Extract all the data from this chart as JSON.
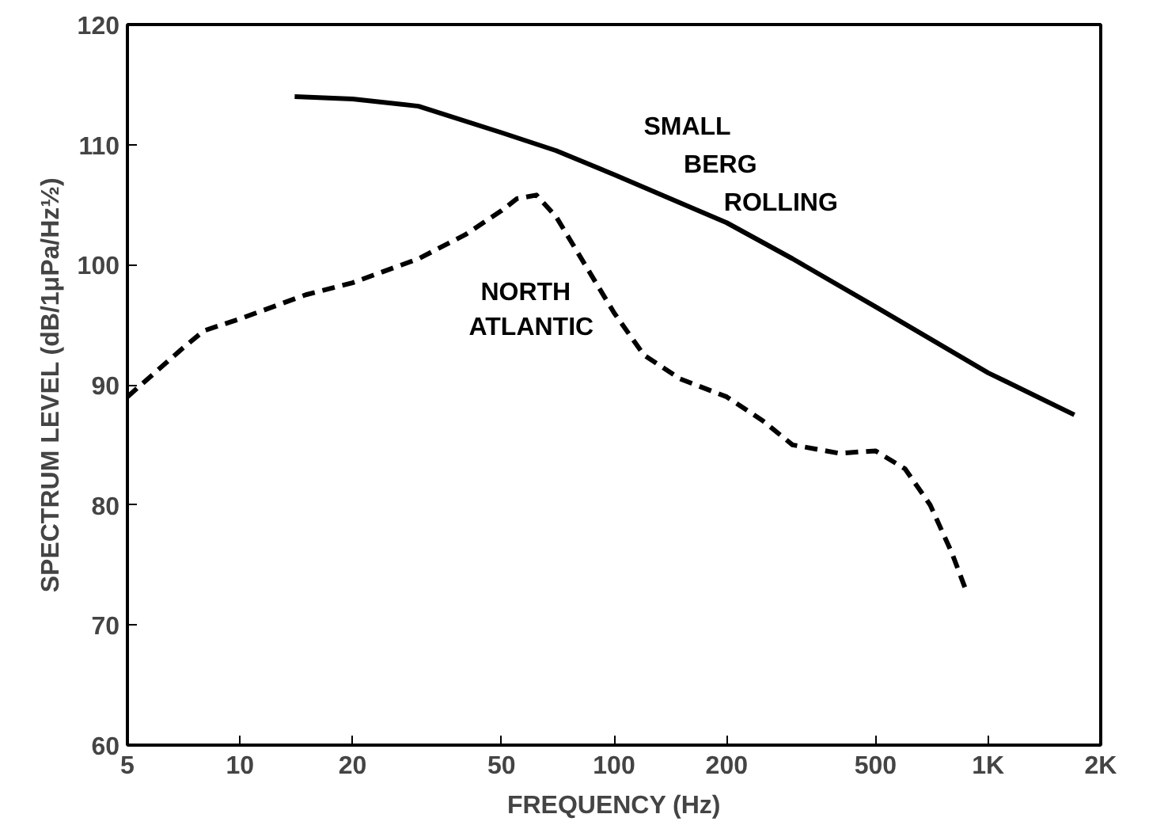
{
  "chart_data": {
    "type": "line",
    "xlabel": "FREQUENCY (Hz)",
    "ylabel": "SPECTRUM LEVEL (dB/1μPa/Hz½)",
    "log": "x",
    "xlim": [
      5,
      2000
    ],
    "ylim": [
      60,
      120
    ],
    "xticks": [
      5,
      10,
      20,
      50,
      100,
      200,
      500,
      {
        "value": 1000,
        "label": "1K"
      },
      {
        "value": 2000,
        "label": "2K"
      }
    ],
    "yticks": [
      60,
      70,
      80,
      90,
      100,
      110,
      120
    ],
    "grid": false,
    "series": [
      {
        "name": "SMALL BERG ROLLING",
        "color": "#000000",
        "line_style": "solid",
        "x": [
          14,
          20,
          30,
          50,
          70,
          100,
          200,
          300,
          500,
          1000,
          1700
        ],
        "values": [
          114,
          113.8,
          113.2,
          111,
          109.5,
          107.5,
          103.5,
          100.5,
          96.5,
          91,
          87.5
        ]
      },
      {
        "name": "NORTH ATLANTIC",
        "color": "#000000",
        "line_style": "dashed",
        "x": [
          5,
          7,
          8,
          10,
          15,
          20,
          30,
          40,
          50,
          55,
          62,
          70,
          80,
          100,
          120,
          150,
          200,
          250,
          300,
          400,
          500,
          600,
          700,
          800,
          870
        ],
        "values": [
          89,
          93,
          94.5,
          95.5,
          97.5,
          98.5,
          100.5,
          102.5,
          104.5,
          105.5,
          105.8,
          104,
          101,
          96,
          92.5,
          90.5,
          89,
          87,
          85,
          84.3,
          84.5,
          83,
          80,
          76,
          73
        ]
      }
    ]
  }
}
